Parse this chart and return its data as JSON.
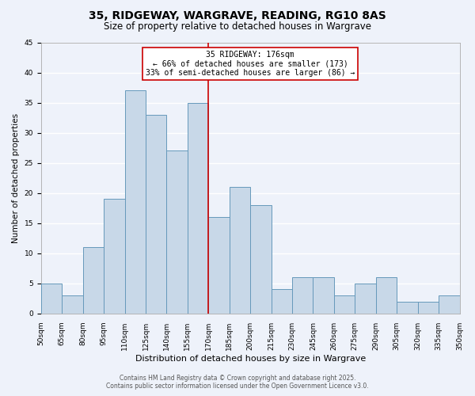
{
  "title": "35, RIDGEWAY, WARGRAVE, READING, RG10 8AS",
  "subtitle": "Size of property relative to detached houses in Wargrave",
  "xlabel": "Distribution of detached houses by size in Wargrave",
  "ylabel": "Number of detached properties",
  "bar_values": [
    5,
    3,
    11,
    19,
    37,
    33,
    27,
    35,
    16,
    21,
    18,
    4,
    6,
    6,
    3,
    5,
    6,
    2,
    2,
    3
  ],
  "bin_edges": [
    50,
    65,
    80,
    95,
    110,
    125,
    140,
    155,
    170,
    185,
    200,
    215,
    230,
    245,
    260,
    275,
    290,
    305,
    320,
    335,
    350
  ],
  "bar_color": "#c8d8e8",
  "bar_edgecolor": "#6699bb",
  "vline_x": 170,
  "vline_color": "#cc0000",
  "annotation_title": "35 RIDGEWAY: 176sqm",
  "annotation_line1": "← 66% of detached houses are smaller (173)",
  "annotation_line2": "33% of semi-detached houses are larger (86) →",
  "annotation_box_edgecolor": "#cc0000",
  "annotation_box_facecolor": "#ffffff",
  "ylim": [
    0,
    45
  ],
  "yticks": [
    0,
    5,
    10,
    15,
    20,
    25,
    30,
    35,
    40,
    45
  ],
  "background_color": "#eef2fa",
  "grid_color": "#ffffff",
  "footer_line1": "Contains HM Land Registry data © Crown copyright and database right 2025.",
  "footer_line2": "Contains public sector information licensed under the Open Government Licence v3.0.",
  "title_fontsize": 10,
  "subtitle_fontsize": 8.5,
  "xlabel_fontsize": 8,
  "ylabel_fontsize": 7.5,
  "tick_fontsize": 6.5,
  "annotation_fontsize": 7,
  "footer_fontsize": 5.5
}
